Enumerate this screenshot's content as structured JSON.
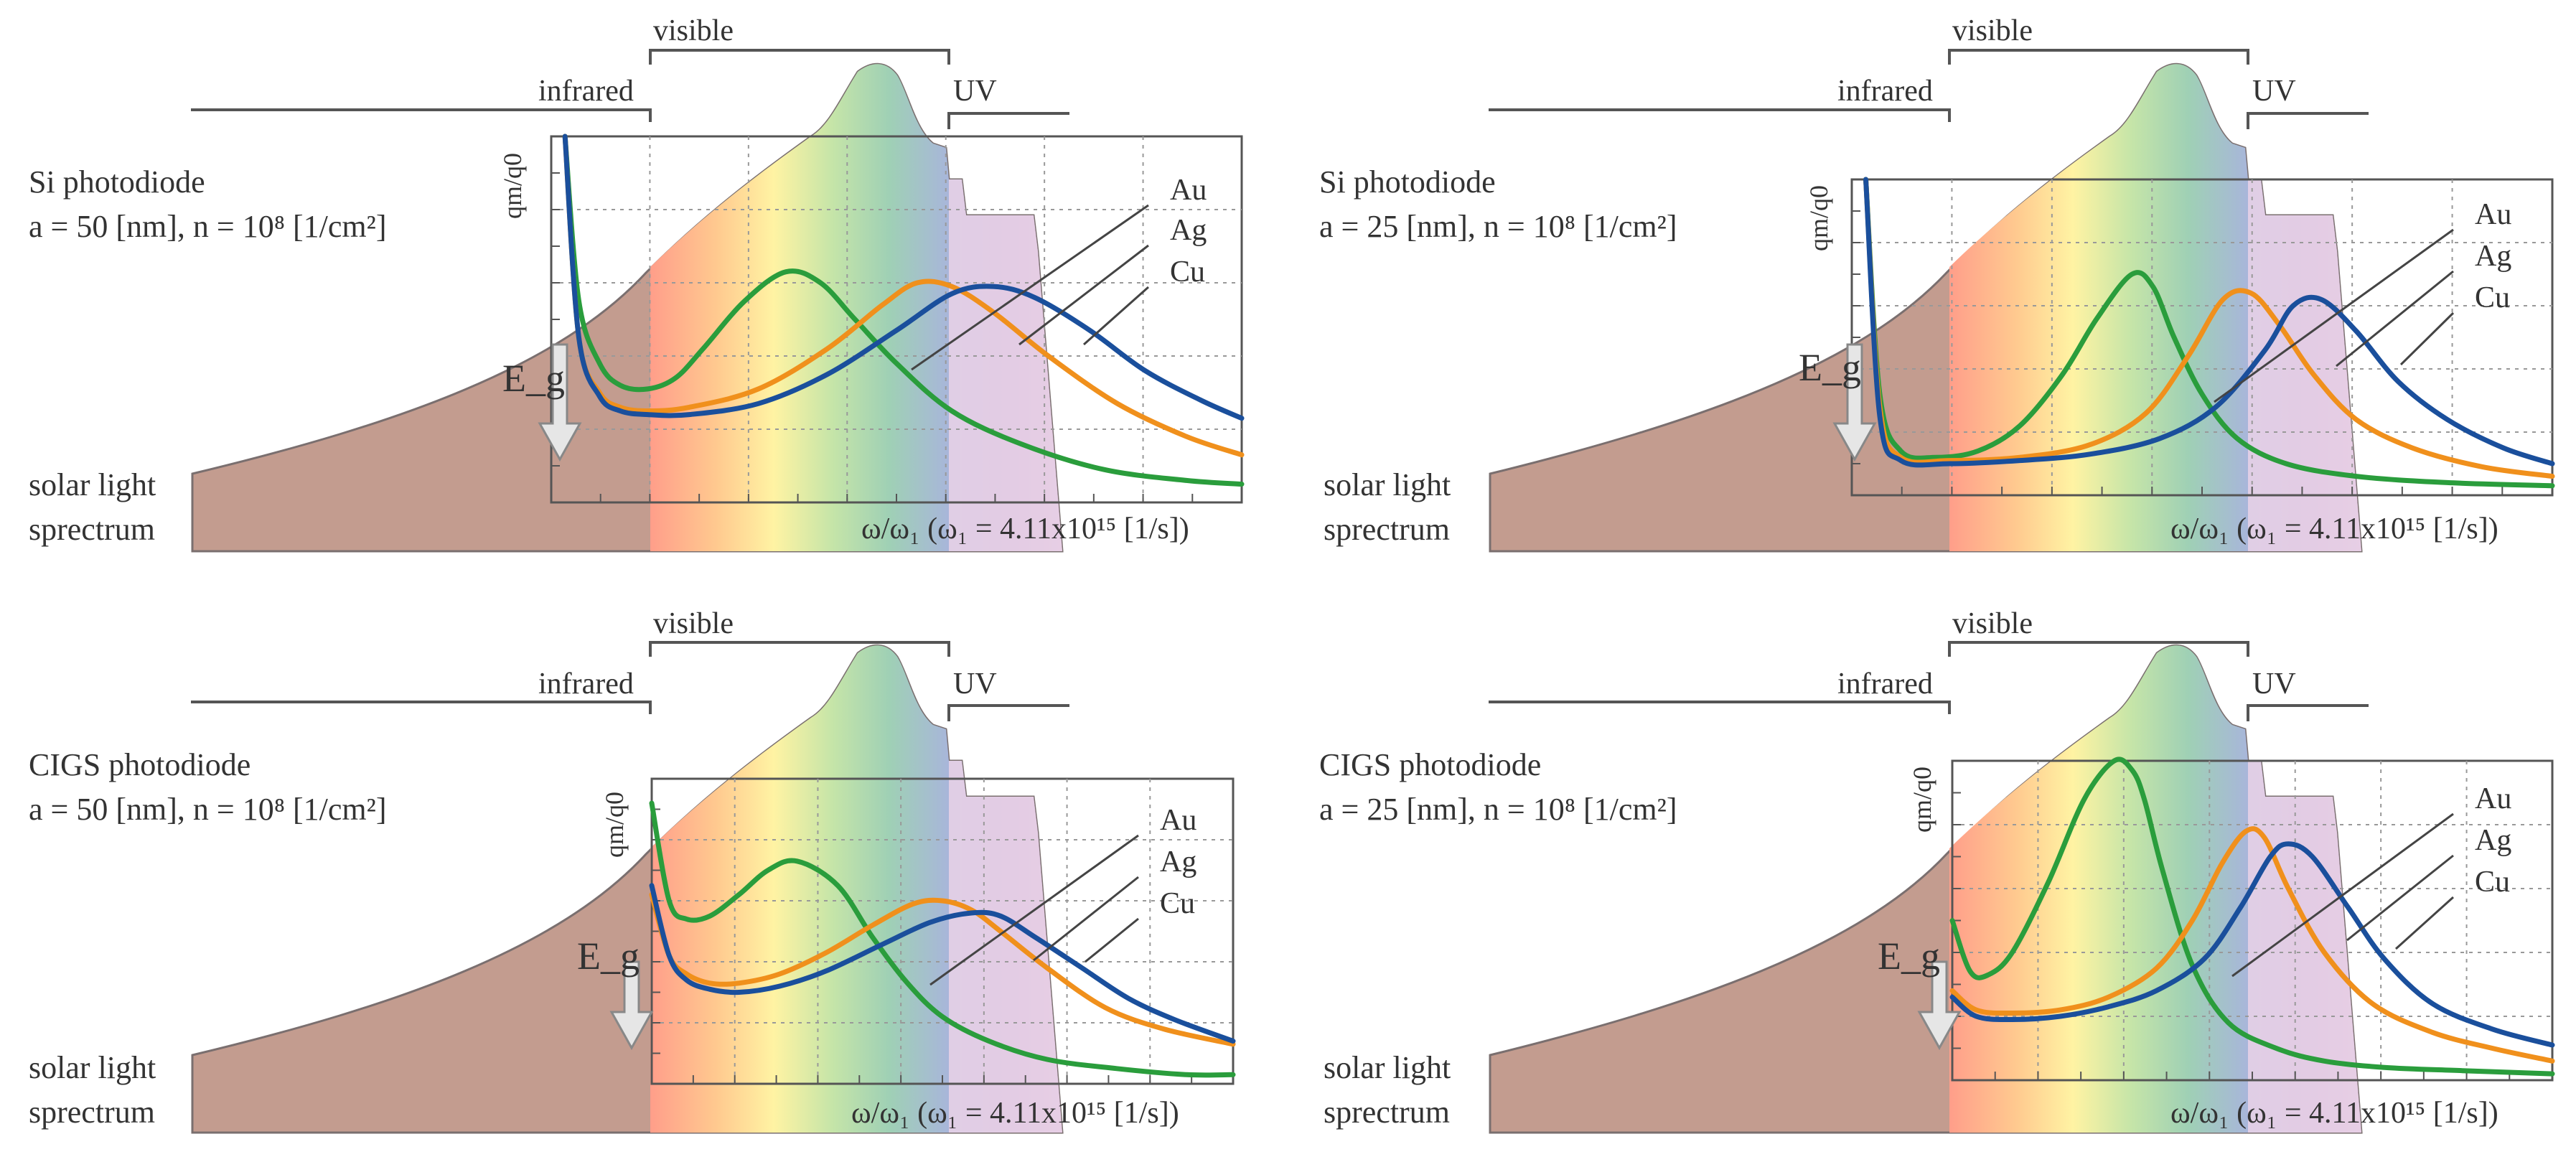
{
  "colors": {
    "sun": "#c39c8f",
    "sun_edge": "#7a6f6f",
    "au": "#2a9d3c",
    "ag": "#f0901c",
    "cu": "#1a4f9c",
    "axis": "#555555",
    "grid": "#999999",
    "arrow": "#cccccc"
  },
  "band_labels": {
    "visible": "visible",
    "infrared": "infrared",
    "uv": "UV"
  },
  "curve_labels": [
    "Au",
    "Ag",
    "Cu"
  ],
  "sun_label": [
    "solar light",
    "sprectrum"
  ],
  "axis": {
    "ylabel": "q_m/q_0",
    "xlabel": "ω/ω₁ (ω₁ = 4.11x10¹⁵ [1/s])",
    "egap": "E_g"
  },
  "chart_data": [
    {
      "type": "line",
      "title": "Si photodiode",
      "subtitle": "a = 50 [nm], n = 10⁸ [1/cm²]",
      "xlabel": "ω/ω₁ (ω₁ = 4.11x10¹⁵ [1/s])",
      "ylabel": "qm/q0",
      "x_range": [
        0,
        1
      ],
      "y_range": [
        0,
        1
      ],
      "grid": true,
      "series": [
        {
          "name": "Au",
          "x": [
            0.02,
            0.04,
            0.07,
            0.1,
            0.14,
            0.18,
            0.22,
            0.28,
            0.34,
            0.39,
            0.44,
            0.5,
            0.58,
            0.68,
            0.8,
            0.92,
            1.0
          ],
          "y": [
            1.0,
            0.55,
            0.38,
            0.32,
            0.31,
            0.34,
            0.42,
            0.55,
            0.63,
            0.6,
            0.5,
            0.38,
            0.25,
            0.16,
            0.09,
            0.06,
            0.05
          ]
        },
        {
          "name": "Ag",
          "x": [
            0.02,
            0.04,
            0.07,
            0.1,
            0.14,
            0.2,
            0.3,
            0.4,
            0.48,
            0.53,
            0.58,
            0.64,
            0.72,
            0.82,
            0.92,
            1.0
          ],
          "y": [
            1.0,
            0.45,
            0.3,
            0.26,
            0.25,
            0.26,
            0.31,
            0.42,
            0.54,
            0.6,
            0.59,
            0.52,
            0.4,
            0.27,
            0.18,
            0.13
          ]
        },
        {
          "name": "Cu",
          "x": [
            0.02,
            0.04,
            0.07,
            0.1,
            0.14,
            0.2,
            0.3,
            0.4,
            0.5,
            0.58,
            0.64,
            0.7,
            0.78,
            0.86,
            0.94,
            1.0
          ],
          "y": [
            1.0,
            0.45,
            0.29,
            0.25,
            0.24,
            0.24,
            0.27,
            0.35,
            0.47,
            0.57,
            0.59,
            0.56,
            0.47,
            0.36,
            0.28,
            0.23
          ]
        }
      ]
    },
    {
      "type": "line",
      "title": "Si photodiode",
      "subtitle": "a = 25 [nm], n = 10⁸ [1/cm²]",
      "xlabel": "ω/ω₁ (ω₁ = 4.11x10¹⁵ [1/s])",
      "ylabel": "qm/q0",
      "x_range": [
        0,
        1
      ],
      "y_range": [
        0,
        1
      ],
      "grid": true,
      "series": [
        {
          "name": "Au",
          "x": [
            0.02,
            0.04,
            0.07,
            0.12,
            0.18,
            0.24,
            0.3,
            0.35,
            0.4,
            0.43,
            0.46,
            0.5,
            0.55,
            0.62,
            0.72,
            0.85,
            1.0
          ],
          "y": [
            1.0,
            0.32,
            0.14,
            0.12,
            0.14,
            0.22,
            0.38,
            0.56,
            0.7,
            0.66,
            0.5,
            0.32,
            0.18,
            0.1,
            0.06,
            0.04,
            0.03
          ]
        },
        {
          "name": "Ag",
          "x": [
            0.02,
            0.04,
            0.07,
            0.14,
            0.24,
            0.34,
            0.42,
            0.48,
            0.53,
            0.57,
            0.61,
            0.66,
            0.72,
            0.8,
            0.9,
            1.0
          ],
          "y": [
            1.0,
            0.28,
            0.12,
            0.11,
            0.12,
            0.16,
            0.26,
            0.44,
            0.62,
            0.64,
            0.54,
            0.38,
            0.24,
            0.15,
            0.09,
            0.06
          ]
        },
        {
          "name": "Cu",
          "x": [
            0.02,
            0.04,
            0.07,
            0.14,
            0.24,
            0.34,
            0.44,
            0.52,
            0.59,
            0.63,
            0.67,
            0.72,
            0.78,
            0.85,
            0.93,
            1.0
          ],
          "y": [
            1.0,
            0.25,
            0.11,
            0.1,
            0.11,
            0.13,
            0.18,
            0.28,
            0.46,
            0.6,
            0.62,
            0.52,
            0.36,
            0.24,
            0.15,
            0.1
          ]
        }
      ]
    },
    {
      "type": "line",
      "title": "CIGS photodiode",
      "subtitle": "a = 50 [nm], n = 10⁸ [1/cm²]",
      "xlabel": "ω/ω₁ (ω₁ = 4.11x10¹⁵ [1/s])",
      "ylabel": "qm/q0",
      "x_range": [
        0,
        1
      ],
      "y_range": [
        0,
        1
      ],
      "grid": true,
      "series": [
        {
          "name": "Au",
          "x": [
            0.0,
            0.03,
            0.06,
            0.1,
            0.15,
            0.2,
            0.25,
            0.32,
            0.38,
            0.44,
            0.5,
            0.58,
            0.68,
            0.8,
            0.92,
            1.0
          ],
          "y": [
            0.92,
            0.6,
            0.54,
            0.55,
            0.62,
            0.7,
            0.73,
            0.65,
            0.48,
            0.33,
            0.22,
            0.14,
            0.08,
            0.05,
            0.03,
            0.03
          ]
        },
        {
          "name": "Ag",
          "x": [
            0.0,
            0.03,
            0.06,
            0.1,
            0.15,
            0.22,
            0.3,
            0.38,
            0.45,
            0.5,
            0.55,
            0.6,
            0.68,
            0.78,
            0.88,
            1.0
          ],
          "y": [
            0.62,
            0.42,
            0.36,
            0.33,
            0.33,
            0.36,
            0.43,
            0.52,
            0.59,
            0.6,
            0.57,
            0.5,
            0.38,
            0.25,
            0.18,
            0.13
          ]
        },
        {
          "name": "Cu",
          "x": [
            0.0,
            0.03,
            0.06,
            0.1,
            0.15,
            0.22,
            0.3,
            0.4,
            0.48,
            0.55,
            0.6,
            0.66,
            0.74,
            0.82,
            0.9,
            1.0
          ],
          "y": [
            0.65,
            0.42,
            0.34,
            0.31,
            0.3,
            0.32,
            0.37,
            0.46,
            0.53,
            0.56,
            0.55,
            0.48,
            0.38,
            0.28,
            0.21,
            0.14
          ]
        }
      ]
    },
    {
      "type": "line",
      "title": "CIGS photodiode",
      "subtitle": "a = 25 [nm], n = 10⁸ [1/cm²]",
      "xlabel": "ω/ω₁ (ω₁ = 4.11x10¹⁵ [1/s])",
      "ylabel": "qm/q0",
      "x_range": [
        0,
        1
      ],
      "y_range": [
        0,
        1
      ],
      "grid": true,
      "series": [
        {
          "name": "Au",
          "x": [
            0.0,
            0.03,
            0.06,
            0.1,
            0.16,
            0.22,
            0.27,
            0.3,
            0.32,
            0.35,
            0.4,
            0.46,
            0.54,
            0.62,
            0.72,
            0.85,
            1.0
          ],
          "y": [
            0.5,
            0.34,
            0.33,
            0.4,
            0.62,
            0.88,
            1.0,
            0.97,
            0.88,
            0.66,
            0.36,
            0.18,
            0.1,
            0.06,
            0.04,
            0.03,
            0.02
          ]
        },
        {
          "name": "Ag",
          "x": [
            0.0,
            0.04,
            0.1,
            0.18,
            0.26,
            0.34,
            0.4,
            0.45,
            0.49,
            0.52,
            0.56,
            0.62,
            0.7,
            0.8,
            0.9,
            1.0
          ],
          "y": [
            0.28,
            0.22,
            0.21,
            0.22,
            0.26,
            0.35,
            0.5,
            0.68,
            0.78,
            0.76,
            0.6,
            0.4,
            0.24,
            0.15,
            0.1,
            0.06
          ]
        },
        {
          "name": "Cu",
          "x": [
            0.0,
            0.04,
            0.1,
            0.18,
            0.26,
            0.34,
            0.42,
            0.48,
            0.53,
            0.56,
            0.6,
            0.66,
            0.72,
            0.8,
            0.9,
            1.0
          ],
          "y": [
            0.26,
            0.2,
            0.19,
            0.2,
            0.23,
            0.28,
            0.38,
            0.54,
            0.7,
            0.74,
            0.7,
            0.54,
            0.38,
            0.24,
            0.16,
            0.11
          ]
        }
      ]
    }
  ]
}
